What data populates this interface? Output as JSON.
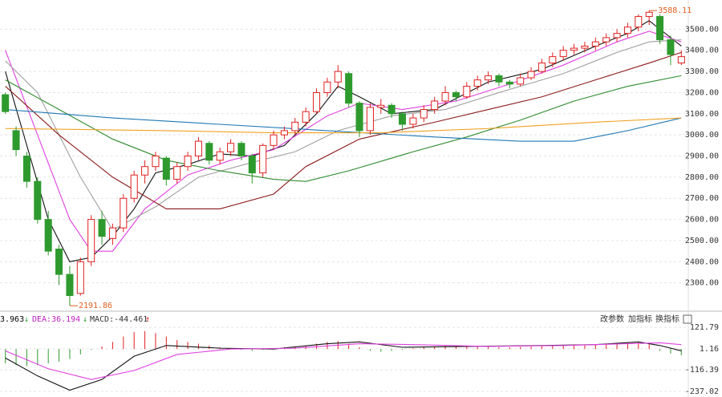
{
  "chart_data": [
    {
      "type": "candlestick",
      "up_color": "#e02020",
      "down_color": "#2e9a2e",
      "ylim": [
        2166,
        3638
      ],
      "yticks": [
        {
          "value": 2300,
          "label": "2300.00"
        },
        {
          "value": 2400,
          "label": "2400.00"
        },
        {
          "value": 2500,
          "label": "2500.00"
        },
        {
          "value": 2600,
          "label": "2600.00"
        },
        {
          "value": 2700,
          "label": "2700.00"
        },
        {
          "value": 2800,
          "label": "2800.00"
        },
        {
          "value": 2900,
          "label": "2900.00"
        },
        {
          "value": 3000,
          "label": "3000.00"
        },
        {
          "value": 3100,
          "label": "3100.00"
        },
        {
          "value": 3200,
          "label": "3200.00"
        },
        {
          "value": 3300,
          "label": "3300.00"
        },
        {
          "value": 3400,
          "label": "3400.00"
        },
        {
          "value": 3500,
          "label": "3500.00"
        }
      ],
      "grid": true,
      "candles": [
        [
          3190,
          3200,
          3100,
          3110
        ],
        [
          3020,
          3040,
          2900,
          2930
        ],
        [
          2900,
          2920,
          2750,
          2780
        ],
        [
          2780,
          2800,
          2580,
          2600
        ],
        [
          2600,
          2640,
          2430,
          2450
        ],
        [
          2460,
          2480,
          2290,
          2340
        ],
        [
          2340,
          2380,
          2191.86,
          2240
        ],
        [
          2250,
          2420,
          2240,
          2400
        ],
        [
          2400,
          2620,
          2380,
          2600
        ],
        [
          2600,
          2640,
          2480,
          2520
        ],
        [
          2510,
          2580,
          2480,
          2560
        ],
        [
          2560,
          2720,
          2540,
          2700
        ],
        [
          2700,
          2830,
          2680,
          2810
        ],
        [
          2810,
          2880,
          2770,
          2850
        ],
        [
          2850,
          2920,
          2830,
          2900
        ],
        [
          2890,
          2900,
          2760,
          2790
        ],
        [
          2790,
          2870,
          2770,
          2850
        ],
        [
          2850,
          2920,
          2830,
          2900
        ],
        [
          2900,
          2990,
          2880,
          2970
        ],
        [
          2960,
          2970,
          2860,
          2880
        ],
        [
          2880,
          2940,
          2860,
          2920
        ],
        [
          2920,
          2980,
          2900,
          2960
        ],
        [
          2960,
          2970,
          2880,
          2900
        ],
        [
          2900,
          2910,
          2770,
          2820
        ],
        [
          2820,
          2960,
          2800,
          2950
        ],
        [
          2950,
          3020,
          2930,
          3000
        ],
        [
          3000,
          3040,
          2980,
          3020
        ],
        [
          3020,
          3080,
          3000,
          3060
        ],
        [
          3060,
          3130,
          3040,
          3110
        ],
        [
          3110,
          3220,
          3100,
          3200
        ],
        [
          3200,
          3270,
          3180,
          3250
        ],
        [
          3250,
          3330,
          3220,
          3300
        ],
        [
          3290,
          3300,
          3130,
          3150
        ],
        [
          3150,
          3160,
          2990,
          3020
        ],
        [
          3020,
          3150,
          3000,
          3130
        ],
        [
          3130,
          3170,
          3100,
          3140
        ],
        [
          3140,
          3150,
          3080,
          3100
        ],
        [
          3100,
          3110,
          3020,
          3050
        ],
        [
          3050,
          3100,
          3030,
          3080
        ],
        [
          3080,
          3140,
          3060,
          3120
        ],
        [
          3120,
          3180,
          3100,
          3160
        ],
        [
          3160,
          3230,
          3140,
          3200
        ],
        [
          3200,
          3210,
          3160,
          3180
        ],
        [
          3180,
          3250,
          3170,
          3230
        ],
        [
          3230,
          3280,
          3210,
          3260
        ],
        [
          3260,
          3300,
          3240,
          3280
        ],
        [
          3280,
          3290,
          3230,
          3250
        ],
        [
          3250,
          3260,
          3220,
          3240
        ],
        [
          3240,
          3290,
          3230,
          3270
        ],
        [
          3270,
          3320,
          3260,
          3300
        ],
        [
          3300,
          3360,
          3290,
          3340
        ],
        [
          3340,
          3390,
          3320,
          3370
        ],
        [
          3370,
          3420,
          3350,
          3400
        ],
        [
          3400,
          3430,
          3380,
          3410
        ],
        [
          3410,
          3440,
          3390,
          3420
        ],
        [
          3420,
          3460,
          3400,
          3440
        ],
        [
          3440,
          3480,
          3420,
          3460
        ],
        [
          3460,
          3500,
          3440,
          3480
        ],
        [
          3480,
          3530,
          3460,
          3510
        ],
        [
          3510,
          3570,
          3490,
          3560
        ],
        [
          3560,
          3588.11,
          3520,
          3580
        ],
        [
          3560,
          3570,
          3430,
          3450
        ],
        [
          3450,
          3470,
          3330,
          3380
        ],
        [
          3340,
          3400,
          3330,
          3370
        ]
      ],
      "lines": [
        {
          "color": "#111111",
          "x": [
            0,
            2,
            4,
            6,
            8,
            10,
            12,
            14,
            17,
            20,
            23,
            26,
            29,
            31,
            33,
            36,
            40,
            45,
            50,
            55,
            58,
            60,
            61,
            63
          ],
          "values": [
            3300,
            2950,
            2600,
            2400,
            2420,
            2520,
            2650,
            2820,
            2860,
            2910,
            2900,
            2950,
            3100,
            3230,
            3180,
            3100,
            3120,
            3250,
            3310,
            3420,
            3480,
            3540,
            3500,
            3420
          ]
        },
        {
          "color": "#e040e0",
          "x": [
            0,
            3,
            6,
            8,
            10,
            13,
            17,
            21,
            25,
            30,
            33,
            37,
            42,
            47,
            52,
            57,
            60,
            63
          ],
          "values": [
            3400,
            3000,
            2600,
            2450,
            2450,
            2650,
            2810,
            2880,
            2930,
            3090,
            3150,
            3120,
            3160,
            3240,
            3330,
            3440,
            3490,
            3440
          ]
        },
        {
          "color": "#a0a0a0",
          "x": [
            0,
            3,
            7,
            10,
            14,
            18,
            23,
            27,
            31,
            36,
            41,
            46,
            52,
            57,
            60,
            63
          ],
          "values": [
            3350,
            3200,
            2800,
            2550,
            2660,
            2800,
            2870,
            2920,
            3020,
            3090,
            3120,
            3200,
            3290,
            3390,
            3440,
            3450
          ]
        },
        {
          "color": "#8b1a1a",
          "x": [
            0,
            5,
            10,
            15,
            20,
            25,
            28,
            33,
            40,
            45,
            50,
            55,
            60,
            63
          ],
          "values": [
            3230,
            3000,
            2800,
            2650,
            2650,
            2720,
            2850,
            2980,
            3060,
            3120,
            3180,
            3260,
            3340,
            3390
          ]
        },
        {
          "color": "#2e8b2e",
          "x": [
            0,
            5,
            10,
            15,
            20,
            25,
            28,
            32,
            38,
            43,
            48,
            53,
            58,
            63
          ],
          "values": [
            3260,
            3120,
            2980,
            2880,
            2830,
            2790,
            2780,
            2830,
            2920,
            2990,
            3070,
            3160,
            3230,
            3280
          ]
        },
        {
          "color": "#1f77b4",
          "x": [
            0,
            10,
            20,
            30,
            40,
            48,
            53,
            58,
            63
          ],
          "values": [
            3120,
            3080,
            3050,
            3020,
            2990,
            2970,
            2970,
            3020,
            3080
          ]
        },
        {
          "color": "#f0a020",
          "x": [
            0,
            15,
            25,
            35,
            45,
            55,
            63
          ],
          "values": [
            3030,
            3020,
            3010,
            3010,
            3030,
            3060,
            3080
          ]
        }
      ],
      "annotations": [
        {
          "x": 60,
          "value": 3588.11
        },
        {
          "x": 6,
          "value": 2191.86
        }
      ]
    },
    {
      "type": "macd",
      "indicators": [
        "3.963",
        "DEA:36.194",
        "MACD:-44.461"
      ],
      "buttons": [
        "改参数",
        "加指标",
        "换指标"
      ],
      "ylim": [
        -268,
        158
      ],
      "yticks": [
        121.79,
        1.16,
        -116.39,
        -237.02
      ],
      "up_color": "#e02020",
      "down_color": "#2e9a2e",
      "bars": [
        -80,
        -90,
        -95,
        -90,
        -80,
        -70,
        -55,
        -30,
        -5,
        15,
        40,
        70,
        95,
        100,
        90,
        70,
        50,
        40,
        30,
        20,
        10,
        5,
        -5,
        -10,
        -5,
        5,
        10,
        15,
        20,
        30,
        40,
        45,
        30,
        10,
        -10,
        -15,
        -10,
        -5,
        5,
        10,
        15,
        20,
        20,
        18,
        15,
        12,
        10,
        10,
        12,
        14,
        16,
        18,
        20,
        22,
        25,
        28,
        30,
        32,
        35,
        40,
        30,
        -10,
        -25,
        -35
      ],
      "lines": [
        {
          "color": "#111111",
          "x": [
            0,
            3,
            6,
            9,
            12,
            15,
            20,
            25,
            30,
            33,
            37,
            43,
            50,
            55,
            59,
            61,
            63
          ],
          "values": [
            -50,
            -150,
            -230,
            -170,
            -40,
            20,
            5,
            0,
            30,
            40,
            10,
            15,
            20,
            25,
            40,
            20,
            -10
          ]
        },
        {
          "color": "#e040e0",
          "x": [
            0,
            4,
            8,
            12,
            16,
            21,
            27,
            33,
            38,
            45,
            52,
            58,
            61,
            63
          ],
          "values": [
            -10,
            -110,
            -170,
            -120,
            -30,
            0,
            5,
            30,
            25,
            15,
            20,
            30,
            35,
            25
          ]
        }
      ]
    }
  ]
}
